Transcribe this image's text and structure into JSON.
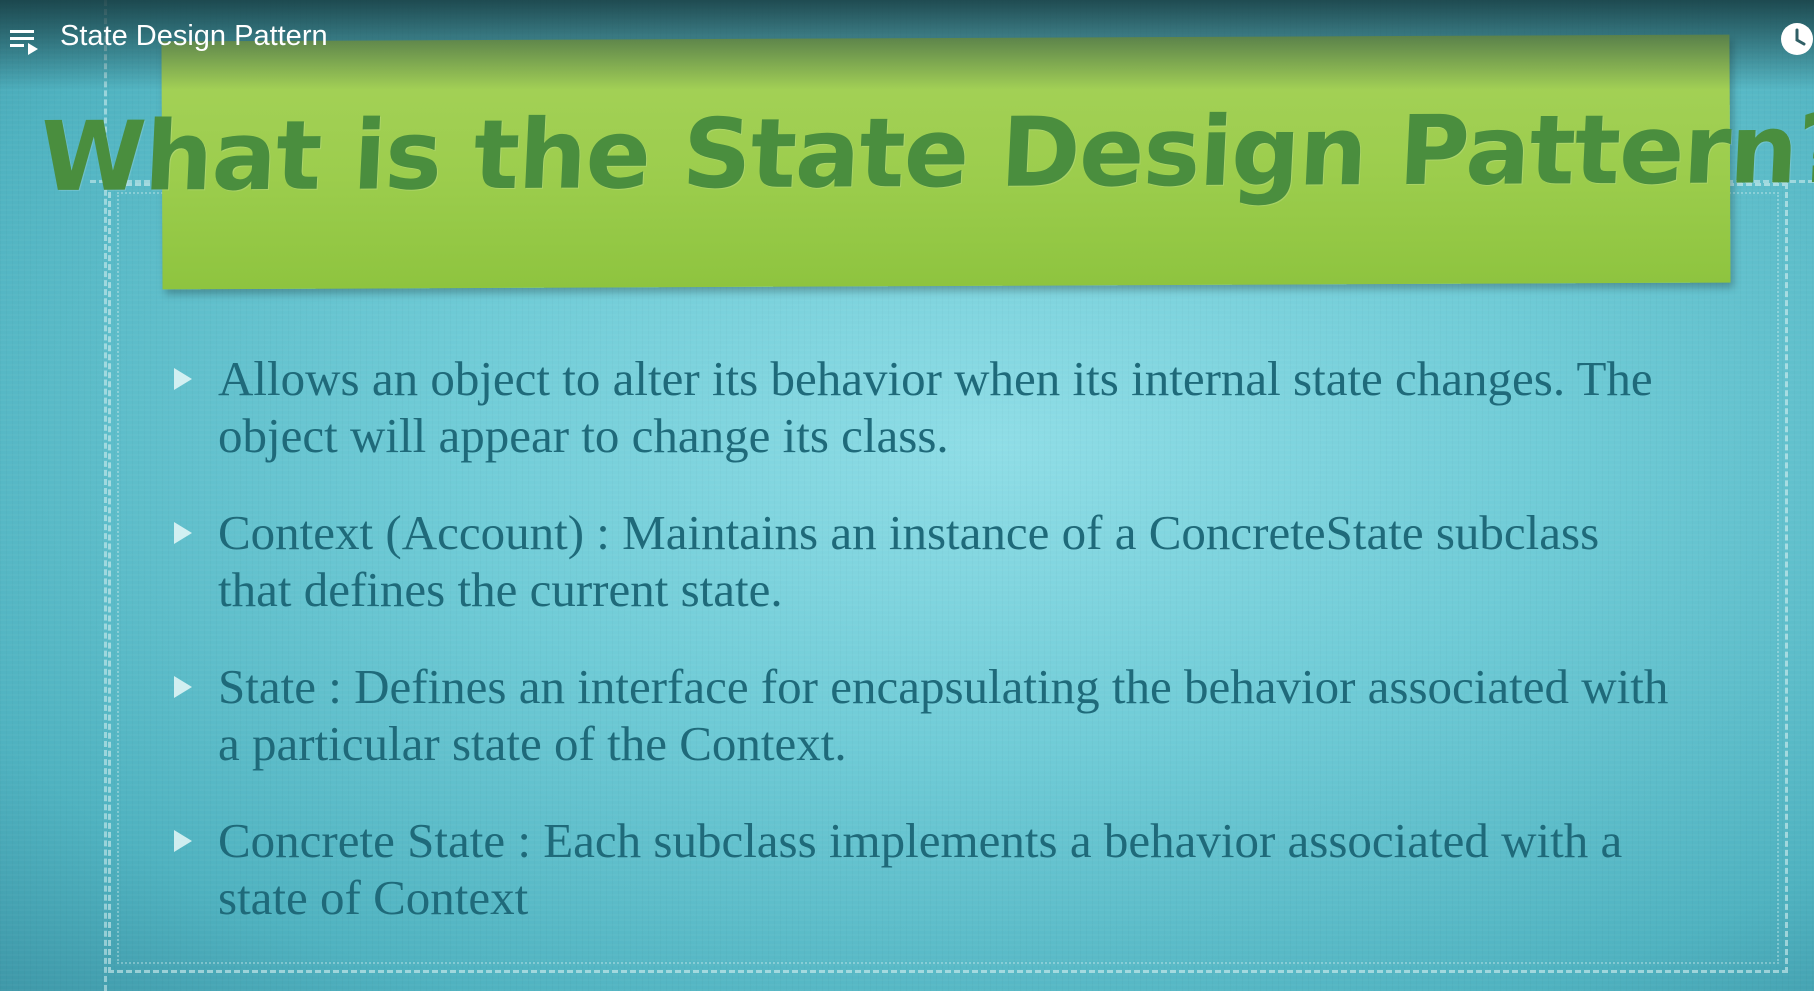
{
  "player": {
    "video_title": "State Design Pattern",
    "left_icon": "playlist-icon",
    "right_icon": "clock-icon"
  },
  "slide": {
    "title": "What is the State Design Pattern?",
    "bullets": [
      "Allows an object to alter its behavior when its internal state changes. The object will appear to change its class.",
      "Context  (Account) : Maintains an instance of a ConcreteState subclass that defines the current state.",
      "State : Defines an interface for encapsulating the behavior associated with a particular state of the Context.",
      "Concrete State : Each subclass implements a behavior associated with a state of Context"
    ]
  },
  "colors": {
    "background": "#6fcbd6",
    "banner": "#9ccd4d",
    "title_text": "#4a8e3e",
    "bullet_text": "#1f6a7a"
  }
}
